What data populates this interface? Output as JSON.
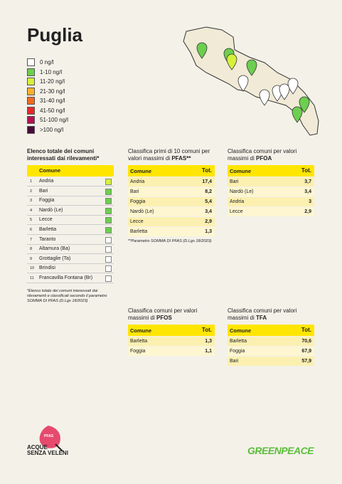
{
  "header": {
    "title": "Puglia"
  },
  "legend": [
    {
      "label": "0 ng/l",
      "color": "#ffffff"
    },
    {
      "label": "1-10 ng/l",
      "color": "#6ccf4f"
    },
    {
      "label": "11-20 ng/l",
      "color": "#d6f03c"
    },
    {
      "label": "21-30 ng/l",
      "color": "#f7b22a"
    },
    {
      "label": "31-40 ng/l",
      "color": "#f26a1f"
    },
    {
      "label": "41-50 ng/l",
      "color": "#e42a2a"
    },
    {
      "label": "51-100 ng/l",
      "color": "#b5124f"
    },
    {
      "label": ">100 ng/l",
      "color": "#4a0b38"
    }
  ],
  "list": {
    "title": "Elenco totale dei comuni interessati dai rilevamenti*",
    "column": "Comune",
    "rows": [
      {
        "num": 1,
        "name": "Andria",
        "color": "#d6f03c"
      },
      {
        "num": 2,
        "name": "Bari",
        "color": "#6ccf4f"
      },
      {
        "num": 3,
        "name": "Foggia",
        "color": "#6ccf4f"
      },
      {
        "num": 4,
        "name": "Nardò (Le)",
        "color": "#6ccf4f"
      },
      {
        "num": 5,
        "name": "Lecce",
        "color": "#6ccf4f"
      },
      {
        "num": 6,
        "name": "Barletta",
        "color": "#6ccf4f"
      },
      {
        "num": 7,
        "name": "Taranto",
        "color": "#ffffff"
      },
      {
        "num": 8,
        "name": "Altamura (Ba)",
        "color": "#ffffff"
      },
      {
        "num": 9,
        "name": "Grottaglie (Ta)",
        "color": "#ffffff"
      },
      {
        "num": 10,
        "name": "Brindisi",
        "color": "#ffffff"
      },
      {
        "num": 11,
        "name": "Francavilla Fontana (Br)",
        "color": "#ffffff"
      }
    ],
    "note": "*Elenco totale dei comuni interessati dai rilevamenti e classificati secondo il parametro SOMMA DI PFAS (D.Lgs 18/2023)"
  },
  "rankings": [
    {
      "title": "Classifica primi di 10 comuni per valori massimi di",
      "emphasis": "PFAS**",
      "columns": [
        "Comune",
        "Tot."
      ],
      "rows": [
        [
          "Andria",
          "17,4"
        ],
        [
          "Bari",
          "8,2"
        ],
        [
          "Foggia",
          "5,4"
        ],
        [
          "Nardò (Le)",
          "3,4"
        ],
        [
          "Lecce",
          "2,9"
        ],
        [
          "Barletta",
          "1,3"
        ]
      ],
      "note": "**Parametro SOMMA DI PFAS (D.Lgs 18/2023)"
    },
    {
      "title": "Classifica comuni per valori massimi di",
      "emphasis": "PFOA",
      "columns": [
        "Comune",
        "Tot."
      ],
      "rows": [
        [
          "Bari",
          "3,7"
        ],
        [
          "Nardò (Le)",
          "3,4"
        ],
        [
          "Andria",
          "3"
        ],
        [
          "Lecce",
          "2,9"
        ]
      ]
    },
    {
      "title": "Classifica comuni per valori massimi di",
      "emphasis": "PFOS",
      "columns": [
        "Comune",
        "Tot."
      ],
      "rows": [
        [
          "Barletta",
          "1,3"
        ],
        [
          "Foggia",
          "1,1"
        ]
      ]
    },
    {
      "title": "Classifica comuni per valori massimi di",
      "emphasis": "TFA",
      "columns": [
        "Comune",
        "Tot."
      ],
      "rows": [
        [
          "Barletta",
          "70,6"
        ],
        [
          "Foggia",
          "67,9"
        ],
        [
          "Bari",
          "57,9"
        ]
      ]
    }
  ],
  "footer": {
    "campaign_badge": "PFAS",
    "campaign_line1": "ACQUE",
    "campaign_line2": "SENZA VELENI",
    "brand": "GREENPEACE"
  }
}
